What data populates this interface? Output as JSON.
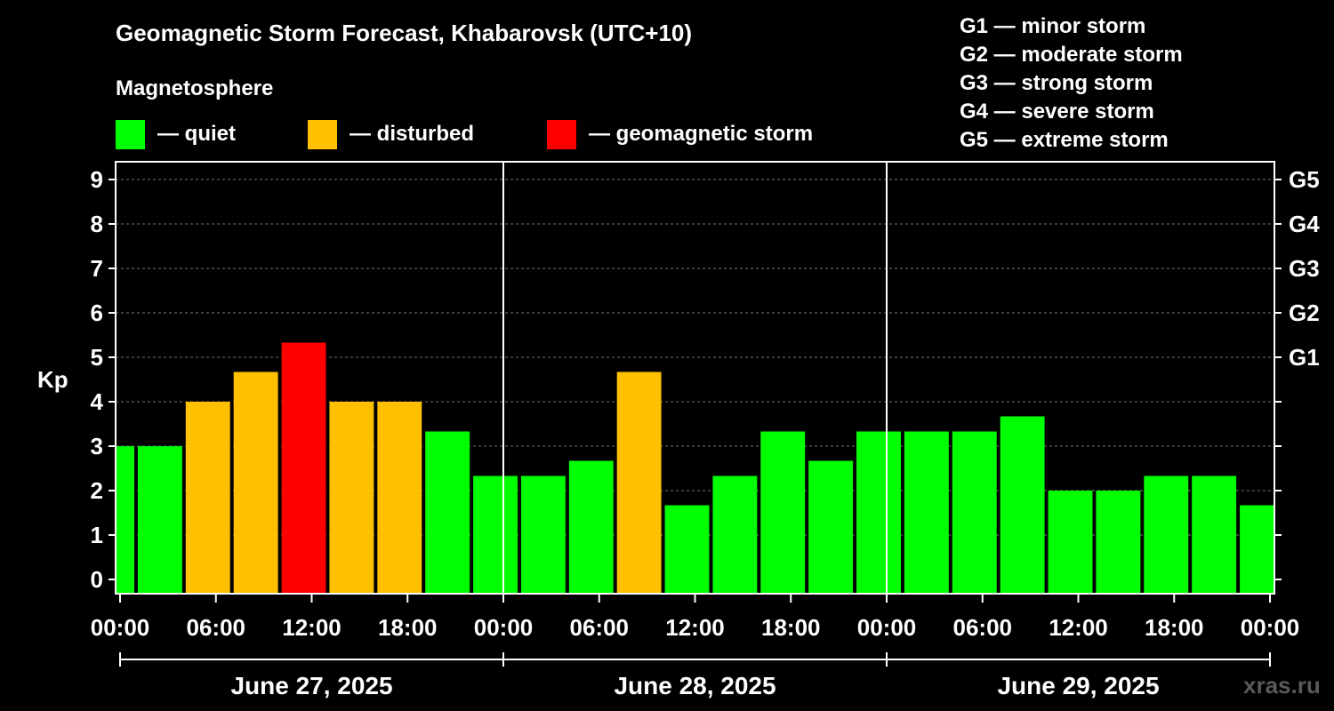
{
  "chart_data": {
    "type": "bar",
    "title": "Geomagnetic Storm Forecast, Khabarovsk (UTC+10)",
    "subtitle": "Magnetosphere",
    "ylabel": "Kp",
    "ylim": [
      0,
      9
    ],
    "yticks": [
      "0",
      "1",
      "2",
      "3",
      "4",
      "5",
      "6",
      "7",
      "8",
      "9"
    ],
    "right_ticks": [
      {
        "kp": 5,
        "label": "G1"
      },
      {
        "kp": 6,
        "label": "G2"
      },
      {
        "kp": 7,
        "label": "G3"
      },
      {
        "kp": 8,
        "label": "G4"
      },
      {
        "kp": 9,
        "label": "G5"
      }
    ],
    "grid": true,
    "x_ticks": [
      "00:00",
      "06:00",
      "12:00",
      "18:00",
      "00:00",
      "06:00",
      "12:00",
      "18:00",
      "00:00",
      "06:00",
      "12:00",
      "18:00",
      "00:00"
    ],
    "days": [
      "June 27, 2025",
      "June 28, 2025",
      "June 29, 2025"
    ],
    "hour_range": [
      0,
      72
    ],
    "bars": [
      {
        "start": -1,
        "end": 1,
        "kp": 3.0,
        "level": "quiet"
      },
      {
        "start": 1,
        "end": 4,
        "kp": 3.0,
        "level": "quiet"
      },
      {
        "start": 4,
        "end": 7,
        "kp": 4.0,
        "level": "disturbed"
      },
      {
        "start": 7,
        "end": 10,
        "kp": 4.67,
        "level": "disturbed"
      },
      {
        "start": 10,
        "end": 13,
        "kp": 5.33,
        "level": "storm"
      },
      {
        "start": 13,
        "end": 16,
        "kp": 4.0,
        "level": "disturbed"
      },
      {
        "start": 16,
        "end": 19,
        "kp": 4.0,
        "level": "disturbed"
      },
      {
        "start": 19,
        "end": 22,
        "kp": 3.33,
        "level": "quiet"
      },
      {
        "start": 22,
        "end": 25,
        "kp": 2.33,
        "level": "quiet"
      },
      {
        "start": 25,
        "end": 28,
        "kp": 2.33,
        "level": "quiet"
      },
      {
        "start": 28,
        "end": 31,
        "kp": 2.67,
        "level": "quiet"
      },
      {
        "start": 31,
        "end": 34,
        "kp": 4.67,
        "level": "disturbed"
      },
      {
        "start": 34,
        "end": 37,
        "kp": 1.67,
        "level": "quiet"
      },
      {
        "start": 37,
        "end": 40,
        "kp": 2.33,
        "level": "quiet"
      },
      {
        "start": 40,
        "end": 43,
        "kp": 3.33,
        "level": "quiet"
      },
      {
        "start": 43,
        "end": 46,
        "kp": 2.67,
        "level": "quiet"
      },
      {
        "start": 46,
        "end": 49,
        "kp": 3.33,
        "level": "quiet"
      },
      {
        "start": 49,
        "end": 52,
        "kp": 3.33,
        "level": "quiet"
      },
      {
        "start": 52,
        "end": 55,
        "kp": 3.33,
        "level": "quiet"
      },
      {
        "start": 55,
        "end": 58,
        "kp": 3.67,
        "level": "quiet"
      },
      {
        "start": 58,
        "end": 61,
        "kp": 2.0,
        "level": "quiet"
      },
      {
        "start": 61,
        "end": 64,
        "kp": 2.0,
        "level": "quiet"
      },
      {
        "start": 64,
        "end": 67,
        "kp": 2.33,
        "level": "quiet"
      },
      {
        "start": 67,
        "end": 70,
        "kp": 2.33,
        "level": "quiet"
      },
      {
        "start": 70,
        "end": 73,
        "kp": 1.67,
        "level": "quiet"
      }
    ],
    "colors": {
      "quiet": "#00ff00",
      "disturbed": "#ffc000",
      "storm": "#ff0000"
    }
  },
  "legend": {
    "quiet": "— quiet",
    "disturbed": "— disturbed",
    "storm": "— geomagnetic storm"
  },
  "g_scale": [
    "G1 — minor storm",
    "G2 — moderate storm",
    "G3 — strong storm",
    "G4 — severe storm",
    "G5 — extreme storm"
  ],
  "watermark": "xras.ru"
}
